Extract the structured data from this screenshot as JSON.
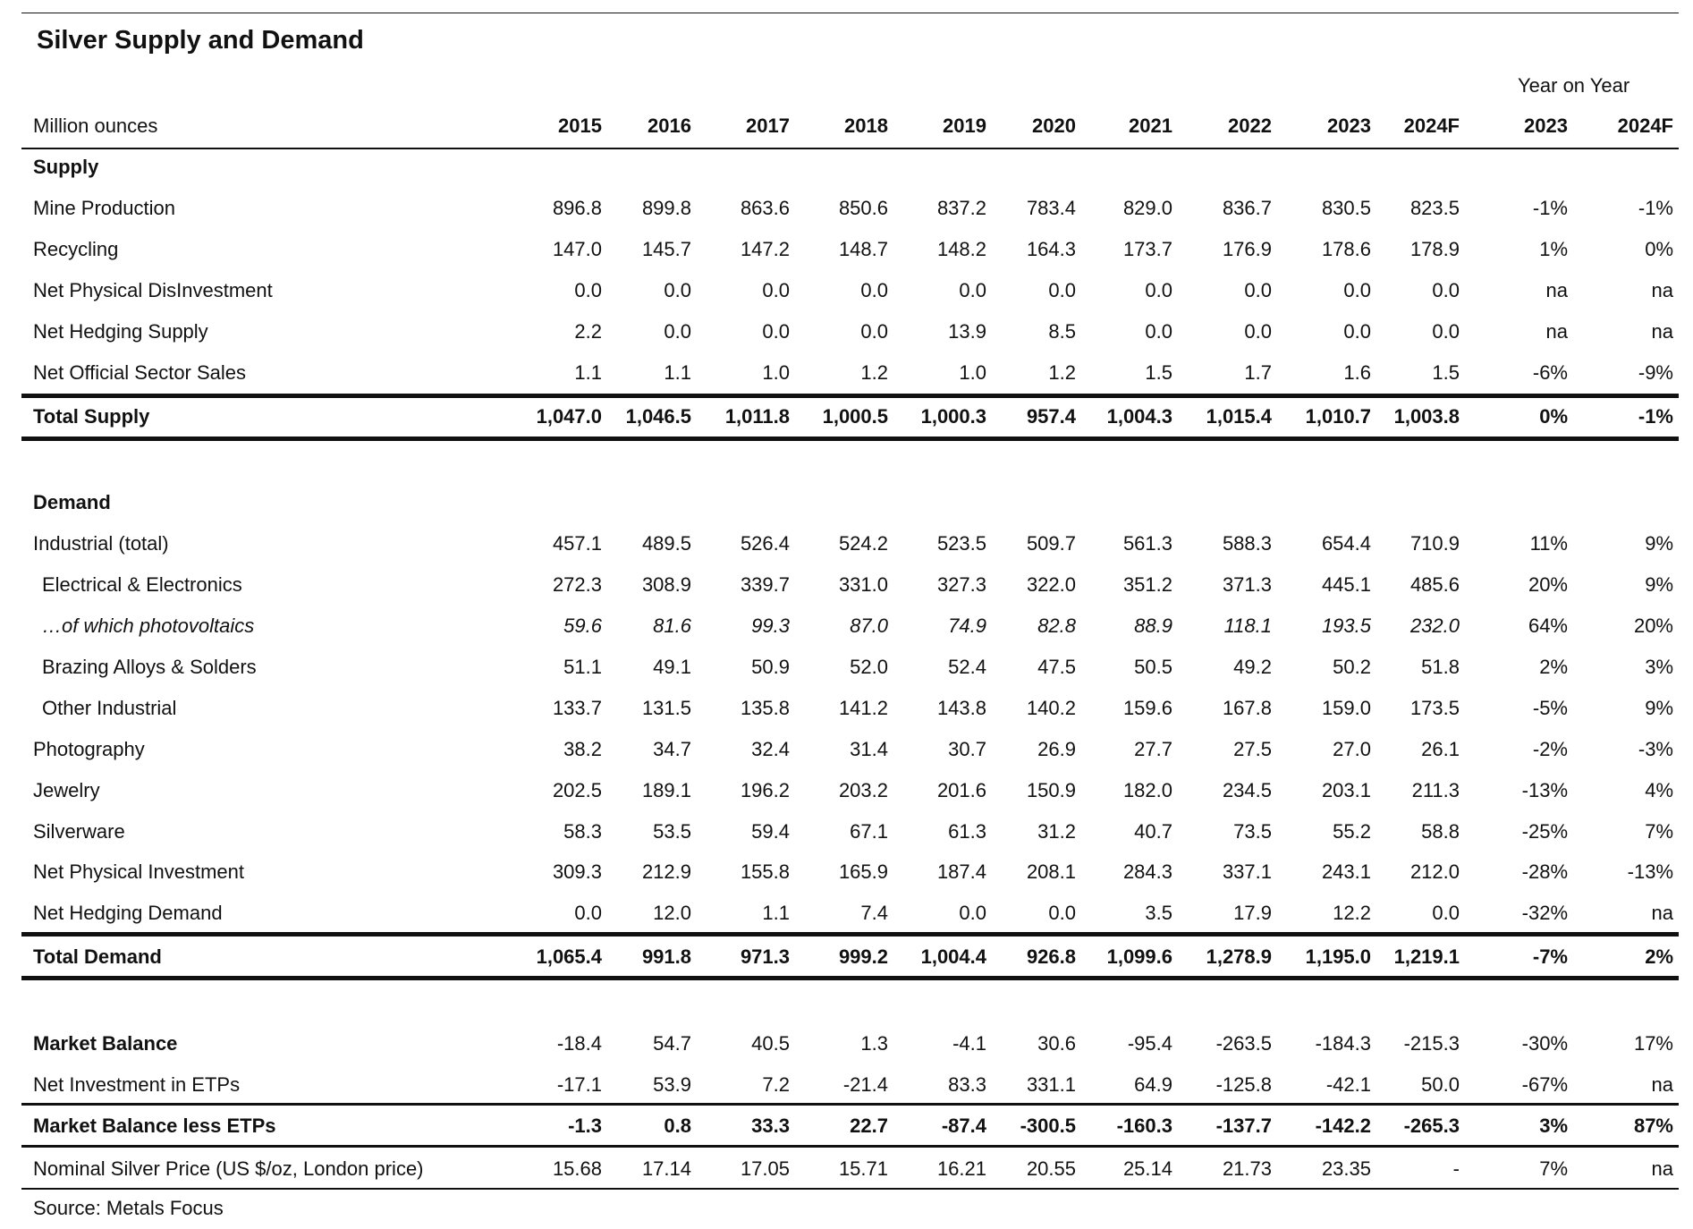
{
  "title": "Silver Supply and Demand",
  "group_header": "Year on Year",
  "header": {
    "label": "Million ounces",
    "columns": [
      "2015",
      "2016",
      "2017",
      "2018",
      "2019",
      "2020",
      "2021",
      "2022",
      "2023",
      "2024F",
      "2023",
      "2024F"
    ]
  },
  "rows": [
    {
      "label": "Supply"
    },
    {
      "label": "Mine Production",
      "values": [
        "896.8",
        "899.8",
        "863.6",
        "850.6",
        "837.2",
        "783.4",
        "829.0",
        "836.7",
        "830.5",
        "823.5",
        "-1%",
        "-1%"
      ]
    },
    {
      "label": "Recycling",
      "values": [
        "147.0",
        "145.7",
        "147.2",
        "148.7",
        "148.2",
        "164.3",
        "173.7",
        "176.9",
        "178.6",
        "178.9",
        "1%",
        "0%"
      ]
    },
    {
      "label": "Net Physical DisInvestment",
      "values": [
        "0.0",
        "0.0",
        "0.0",
        "0.0",
        "0.0",
        "0.0",
        "0.0",
        "0.0",
        "0.0",
        "0.0",
        "na",
        "na"
      ]
    },
    {
      "label": "Net Hedging Supply",
      "values": [
        "2.2",
        "0.0",
        "0.0",
        "0.0",
        "13.9",
        "8.5",
        "0.0",
        "0.0",
        "0.0",
        "0.0",
        "na",
        "na"
      ]
    },
    {
      "label": "Net Official Sector Sales",
      "values": [
        "1.1",
        "1.1",
        "1.0",
        "1.2",
        "1.0",
        "1.2",
        "1.5",
        "1.7",
        "1.6",
        "1.5",
        "-6%",
        "-9%"
      ]
    },
    {
      "label": "Total Supply",
      "values": [
        "1,047.0",
        "1,046.5",
        "1,011.8",
        "1,000.5",
        "1,000.3",
        "957.4",
        "1,004.3",
        "1,015.4",
        "1,010.7",
        "1,003.8",
        "0%",
        "-1%"
      ]
    },
    {
      "label": "Demand"
    },
    {
      "label": "Industrial (total)",
      "values": [
        "457.1",
        "489.5",
        "526.4",
        "524.2",
        "523.5",
        "509.7",
        "561.3",
        "588.3",
        "654.4",
        "710.9",
        "11%",
        "9%"
      ]
    },
    {
      "label": "Electrical & Electronics",
      "values": [
        "272.3",
        "308.9",
        "339.7",
        "331.0",
        "327.3",
        "322.0",
        "351.2",
        "371.3",
        "445.1",
        "485.6",
        "20%",
        "9%"
      ]
    },
    {
      "label": "…of which photovoltaics",
      "values": [
        "59.6",
        "81.6",
        "99.3",
        "87.0",
        "74.9",
        "82.8",
        "88.9",
        "118.1",
        "193.5",
        "232.0",
        "64%",
        "20%"
      ]
    },
    {
      "label": "Brazing Alloys & Solders",
      "values": [
        "51.1",
        "49.1",
        "50.9",
        "52.0",
        "52.4",
        "47.5",
        "50.5",
        "49.2",
        "50.2",
        "51.8",
        "2%",
        "3%"
      ]
    },
    {
      "label": "Other Industrial",
      "values": [
        "133.7",
        "131.5",
        "135.8",
        "141.2",
        "143.8",
        "140.2",
        "159.6",
        "167.8",
        "159.0",
        "173.5",
        "-5%",
        "9%"
      ]
    },
    {
      "label": "Photography",
      "values": [
        "38.2",
        "34.7",
        "32.4",
        "31.4",
        "30.7",
        "26.9",
        "27.7",
        "27.5",
        "27.0",
        "26.1",
        "-2%",
        "-3%"
      ]
    },
    {
      "label": "Jewelry",
      "values": [
        "202.5",
        "189.1",
        "196.2",
        "203.2",
        "201.6",
        "150.9",
        "182.0",
        "234.5",
        "203.1",
        "211.3",
        "-13%",
        "4%"
      ]
    },
    {
      "label": "Silverware",
      "values": [
        "58.3",
        "53.5",
        "59.4",
        "67.1",
        "61.3",
        "31.2",
        "40.7",
        "73.5",
        "55.2",
        "58.8",
        "-25%",
        "7%"
      ]
    },
    {
      "label": "Net Physical Investment",
      "values": [
        "309.3",
        "212.9",
        "155.8",
        "165.9",
        "187.4",
        "208.1",
        "284.3",
        "337.1",
        "243.1",
        "212.0",
        "-28%",
        "-13%"
      ]
    },
    {
      "label": "Net Hedging Demand",
      "values": [
        "0.0",
        "12.0",
        "1.1",
        "7.4",
        "0.0",
        "0.0",
        "3.5",
        "17.9",
        "12.2",
        "0.0",
        "-32%",
        "na"
      ]
    },
    {
      "label": "Total Demand",
      "values": [
        "1,065.4",
        "991.8",
        "971.3",
        "999.2",
        "1,004.4",
        "926.8",
        "1,099.6",
        "1,278.9",
        "1,195.0",
        "1,219.1",
        "-7%",
        "2%"
      ]
    },
    {
      "label": "Market Balance",
      "values": [
        "-18.4",
        "54.7",
        "40.5",
        "1.3",
        "-4.1",
        "30.6",
        "-95.4",
        "-263.5",
        "-184.3",
        "-215.3",
        "-30%",
        "17%"
      ]
    },
    {
      "label": "Net Investment in ETPs",
      "values": [
        "-17.1",
        "53.9",
        "7.2",
        "-21.4",
        "83.3",
        "331.1",
        "64.9",
        "-125.8",
        "-42.1",
        "50.0",
        "-67%",
        "na"
      ]
    },
    {
      "label": "Market Balance less ETPs",
      "values": [
        "-1.3",
        "0.8",
        "33.3",
        "22.7",
        "-87.4",
        "-300.5",
        "-160.3",
        "-137.7",
        "-142.2",
        "-265.3",
        "3%",
        "87%"
      ]
    },
    {
      "label": "Nominal Silver Price (US $/oz, London price)",
      "values": [
        "15.68",
        "17.14",
        "17.05",
        "15.71",
        "16.21",
        "20.55",
        "25.14",
        "21.73",
        "23.35",
        "-",
        "7%",
        "na"
      ]
    }
  ],
  "source": "Source: Metals Focus"
}
